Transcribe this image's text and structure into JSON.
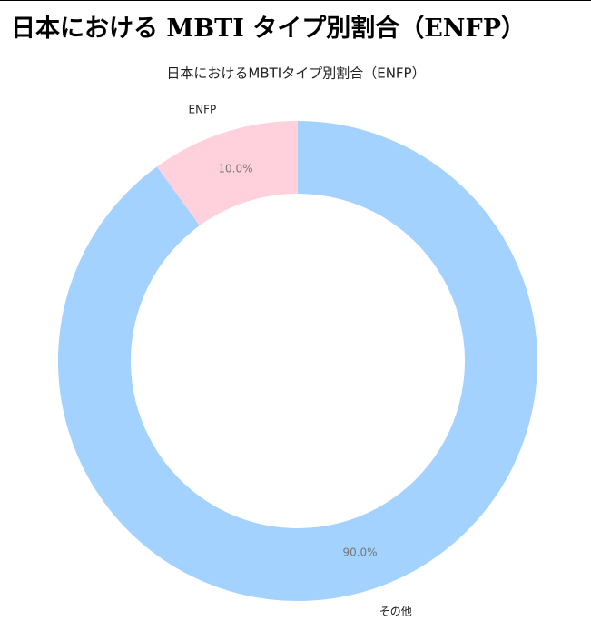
{
  "heading": "日本における MBTI タイプ別割合（ENFP）",
  "chart_data": {
    "type": "donut",
    "title": "日本におけるMBTIタイプ別割合（ENFP）",
    "categories": [
      "ENFP",
      "その他"
    ],
    "values": [
      10,
      90
    ],
    "value_labels": [
      "10.0%",
      "90.0%"
    ],
    "colors": [
      "#ffd1dc",
      "#a3d2ff"
    ]
  }
}
